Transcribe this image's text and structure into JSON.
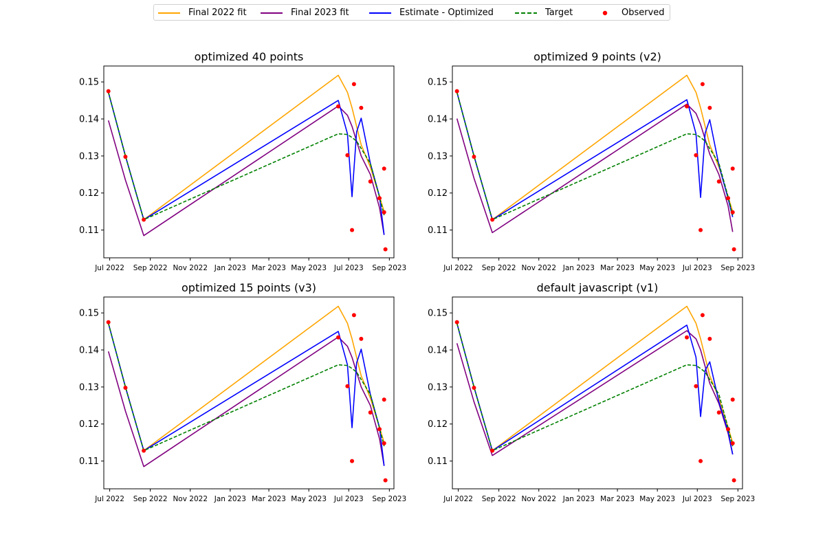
{
  "legend": {
    "entries": [
      {
        "label": "Final 2022 fit",
        "color": "#FFA500",
        "style": "solid"
      },
      {
        "label": "Final 2023 fit",
        "color": "#800080",
        "style": "solid"
      },
      {
        "label": "Estimate - Optimized",
        "color": "#0000FF",
        "style": "solid"
      },
      {
        "label": "Target",
        "color": "#008000",
        "style": "dashed"
      },
      {
        "label": "Observed",
        "color": "#FF0000",
        "style": "dot"
      }
    ]
  },
  "chart_data": [
    {
      "type": "line",
      "title": "optimized 40 points",
      "x": [
        "2022-06-29",
        "2022-07-25",
        "2022-08-22",
        "2023-06-15",
        "2023-06-29",
        "2023-07-06",
        "2023-07-13",
        "2023-07-20",
        "2023-08-03",
        "2023-08-17",
        "2023-08-24"
      ],
      "ylim": [
        0.1025,
        0.1543
      ],
      "yticks": [
        0.11,
        0.12,
        0.13,
        0.14,
        0.15
      ],
      "xticks": [
        "Jul 2022",
        "Sep 2022",
        "Nov 2022",
        "Jan 2023",
        "Mar 2023",
        "May 2023",
        "Jul 2023",
        "Sep 2023"
      ],
      "xtick_dates": [
        "2022-07-01",
        "2022-09-01",
        "2022-11-01",
        "2023-01-01",
        "2023-03-01",
        "2023-05-01",
        "2023-07-01",
        "2023-09-01"
      ],
      "xlim": [
        "2022-06-22",
        "2023-09-08"
      ],
      "series": [
        {
          "name": "Final 2022 fit",
          "color": "#FFA500",
          "values": [
            0.1472,
            0.13,
            0.1128,
            0.1518,
            0.1472,
            0.143,
            0.138,
            0.133,
            0.127,
            0.119,
            0.115
          ]
        },
        {
          "name": "Final 2023 fit",
          "color": "#800080",
          "values": [
            0.1396,
            0.1235,
            0.1085,
            0.1435,
            0.141,
            0.138,
            0.134,
            0.13,
            0.125,
            0.116,
            0.1087
          ]
        },
        {
          "name": "Estimate - Optimized",
          "color": "#0000FF",
          "values": [
            0.1472,
            0.13,
            0.1128,
            0.145,
            0.136,
            0.119,
            0.1365,
            0.1402,
            0.128,
            0.119,
            0.1087
          ]
        },
        {
          "name": "Target",
          "color": "#008000",
          "dashed": true,
          "values": [
            0.1472,
            0.13,
            0.1128,
            0.136,
            0.1358,
            0.135,
            0.134,
            0.132,
            0.128,
            0.119,
            0.114
          ]
        }
      ],
      "observed": {
        "name": "Observed",
        "x": [
          "2022-06-29",
          "2022-07-25",
          "2022-08-22",
          "2023-06-15",
          "2023-06-29",
          "2023-07-06",
          "2023-07-09",
          "2023-07-20",
          "2023-08-03",
          "2023-08-17",
          "2023-08-24",
          "2023-08-24",
          "2023-08-26"
        ],
        "y": [
          0.1475,
          0.1298,
          0.1128,
          0.1434,
          0.1302,
          0.11,
          0.1494,
          0.143,
          0.1231,
          0.1186,
          0.1266,
          0.1148,
          0.1048
        ]
      }
    },
    {
      "type": "line",
      "title": "optimized 9 points (v2)",
      "x": [
        "2022-06-29",
        "2022-07-25",
        "2022-08-22",
        "2023-06-15",
        "2023-06-29",
        "2023-07-06",
        "2023-07-13",
        "2023-07-20",
        "2023-08-03",
        "2023-08-17",
        "2023-08-24"
      ],
      "ylim": [
        0.1025,
        0.1543
      ],
      "yticks": [
        0.11,
        0.12,
        0.13,
        0.14,
        0.15
      ],
      "xticks": [
        "Jul 2022",
        "Sep 2022",
        "Nov 2022",
        "Jan 2023",
        "Mar 2023",
        "May 2023",
        "Jul 2023",
        "Sep 2023"
      ],
      "xtick_dates": [
        "2022-07-01",
        "2022-09-01",
        "2022-11-01",
        "2023-01-01",
        "2023-03-01",
        "2023-05-01",
        "2023-07-01",
        "2023-09-01"
      ],
      "xlim": [
        "2022-06-22",
        "2023-09-08"
      ],
      "series": [
        {
          "name": "Final 2022 fit",
          "color": "#FFA500",
          "values": [
            0.1472,
            0.13,
            0.1128,
            0.1518,
            0.1472,
            0.143,
            0.138,
            0.133,
            0.127,
            0.119,
            0.115
          ]
        },
        {
          "name": "Final 2023 fit",
          "color": "#800080",
          "values": [
            0.1401,
            0.124,
            0.1093,
            0.144,
            0.1415,
            0.1385,
            0.1345,
            0.1305,
            0.125,
            0.1165,
            0.1095
          ]
        },
        {
          "name": "Estimate - Optimized",
          "color": "#0000FF",
          "values": [
            0.1472,
            0.13,
            0.1128,
            0.1452,
            0.136,
            0.1188,
            0.1362,
            0.1398,
            0.1275,
            0.1185,
            0.1135
          ]
        },
        {
          "name": "Target",
          "color": "#008000",
          "dashed": true,
          "values": [
            0.1472,
            0.13,
            0.1128,
            0.136,
            0.1358,
            0.135,
            0.134,
            0.132,
            0.128,
            0.119,
            0.114
          ]
        }
      ],
      "observed": {
        "name": "Observed",
        "x": [
          "2022-06-29",
          "2022-07-25",
          "2022-08-22",
          "2023-06-15",
          "2023-06-29",
          "2023-07-06",
          "2023-07-09",
          "2023-07-20",
          "2023-08-03",
          "2023-08-17",
          "2023-08-24",
          "2023-08-24",
          "2023-08-26"
        ],
        "y": [
          0.1475,
          0.1298,
          0.1128,
          0.1434,
          0.1302,
          0.11,
          0.1494,
          0.143,
          0.1231,
          0.1186,
          0.1266,
          0.1148,
          0.1048
        ]
      }
    },
    {
      "type": "line",
      "title": "optimized 15 points (v3)",
      "x": [
        "2022-06-29",
        "2022-07-25",
        "2022-08-22",
        "2023-06-15",
        "2023-06-29",
        "2023-07-06",
        "2023-07-13",
        "2023-07-20",
        "2023-08-03",
        "2023-08-17",
        "2023-08-24"
      ],
      "ylim": [
        0.1025,
        0.1543
      ],
      "yticks": [
        0.11,
        0.12,
        0.13,
        0.14,
        0.15
      ],
      "xticks": [
        "Jul 2022",
        "Sep 2022",
        "Nov 2022",
        "Jan 2023",
        "Mar 2023",
        "May 2023",
        "Jul 2023",
        "Sep 2023"
      ],
      "xtick_dates": [
        "2022-07-01",
        "2022-09-01",
        "2022-11-01",
        "2023-01-01",
        "2023-03-01",
        "2023-05-01",
        "2023-07-01",
        "2023-09-01"
      ],
      "xlim": [
        "2022-06-22",
        "2023-09-08"
      ],
      "series": [
        {
          "name": "Final 2022 fit",
          "color": "#FFA500",
          "values": [
            0.1472,
            0.13,
            0.1128,
            0.1518,
            0.1472,
            0.143,
            0.138,
            0.133,
            0.127,
            0.119,
            0.115
          ]
        },
        {
          "name": "Final 2023 fit",
          "color": "#800080",
          "values": [
            0.1396,
            0.1235,
            0.1085,
            0.1435,
            0.141,
            0.138,
            0.134,
            0.13,
            0.125,
            0.116,
            0.1087
          ]
        },
        {
          "name": "Estimate - Optimized",
          "color": "#0000FF",
          "values": [
            0.1472,
            0.13,
            0.1128,
            0.145,
            0.136,
            0.119,
            0.1365,
            0.1402,
            0.128,
            0.119,
            0.1087
          ]
        },
        {
          "name": "Target",
          "color": "#008000",
          "dashed": true,
          "values": [
            0.1472,
            0.13,
            0.1128,
            0.136,
            0.1358,
            0.135,
            0.134,
            0.132,
            0.128,
            0.119,
            0.114
          ]
        }
      ],
      "observed": {
        "name": "Observed",
        "x": [
          "2022-06-29",
          "2022-07-25",
          "2022-08-22",
          "2023-06-15",
          "2023-06-29",
          "2023-07-06",
          "2023-07-09",
          "2023-07-20",
          "2023-08-03",
          "2023-08-17",
          "2023-08-24",
          "2023-08-24",
          "2023-08-26"
        ],
        "y": [
          0.1475,
          0.1298,
          0.1128,
          0.1434,
          0.1302,
          0.11,
          0.1494,
          0.143,
          0.1231,
          0.1186,
          0.1266,
          0.1148,
          0.1048
        ]
      }
    },
    {
      "type": "line",
      "title": "default javascript (v1)",
      "x": [
        "2022-06-29",
        "2022-07-25",
        "2022-08-22",
        "2023-06-15",
        "2023-06-29",
        "2023-07-06",
        "2023-07-13",
        "2023-07-20",
        "2023-08-03",
        "2023-08-17",
        "2023-08-24"
      ],
      "ylim": [
        0.1025,
        0.1543
      ],
      "yticks": [
        0.11,
        0.12,
        0.13,
        0.14,
        0.15
      ],
      "xticks": [
        "Jul 2022",
        "Sep 2022",
        "Nov 2022",
        "Jan 2023",
        "Mar 2023",
        "May 2023",
        "Jul 2023",
        "Sep 2023"
      ],
      "xtick_dates": [
        "2022-07-01",
        "2022-09-01",
        "2022-11-01",
        "2023-01-01",
        "2023-03-01",
        "2023-05-01",
        "2023-07-01",
        "2023-09-01"
      ],
      "xlim": [
        "2022-06-22",
        "2023-09-08"
      ],
      "series": [
        {
          "name": "Final 2022 fit",
          "color": "#FFA500",
          "values": [
            0.1472,
            0.13,
            0.1128,
            0.1518,
            0.1472,
            0.143,
            0.138,
            0.133,
            0.127,
            0.119,
            0.115
          ]
        },
        {
          "name": "Final 2023 fit",
          "color": "#800080",
          "values": [
            0.1418,
            0.126,
            0.1115,
            0.1452,
            0.143,
            0.14,
            0.1355,
            0.131,
            0.1255,
            0.1175,
            0.1118
          ]
        },
        {
          "name": "Estimate - Optimized",
          "color": "#0000FF",
          "values": [
            0.1472,
            0.13,
            0.1128,
            0.1467,
            0.138,
            0.122,
            0.1345,
            0.1368,
            0.126,
            0.118,
            0.1118
          ]
        },
        {
          "name": "Target",
          "color": "#008000",
          "dashed": true,
          "values": [
            0.1472,
            0.13,
            0.1128,
            0.136,
            0.1358,
            0.135,
            0.134,
            0.132,
            0.128,
            0.119,
            0.114
          ]
        }
      ],
      "observed": {
        "name": "Observed",
        "x": [
          "2022-06-29",
          "2022-07-25",
          "2022-08-22",
          "2023-06-15",
          "2023-06-29",
          "2023-07-06",
          "2023-07-09",
          "2023-07-20",
          "2023-08-03",
          "2023-08-17",
          "2023-08-24",
          "2023-08-24",
          "2023-08-26"
        ],
        "y": [
          0.1475,
          0.1298,
          0.1128,
          0.1434,
          0.1302,
          0.11,
          0.1494,
          0.143,
          0.1231,
          0.1186,
          0.1266,
          0.1148,
          0.1048
        ]
      }
    }
  ]
}
